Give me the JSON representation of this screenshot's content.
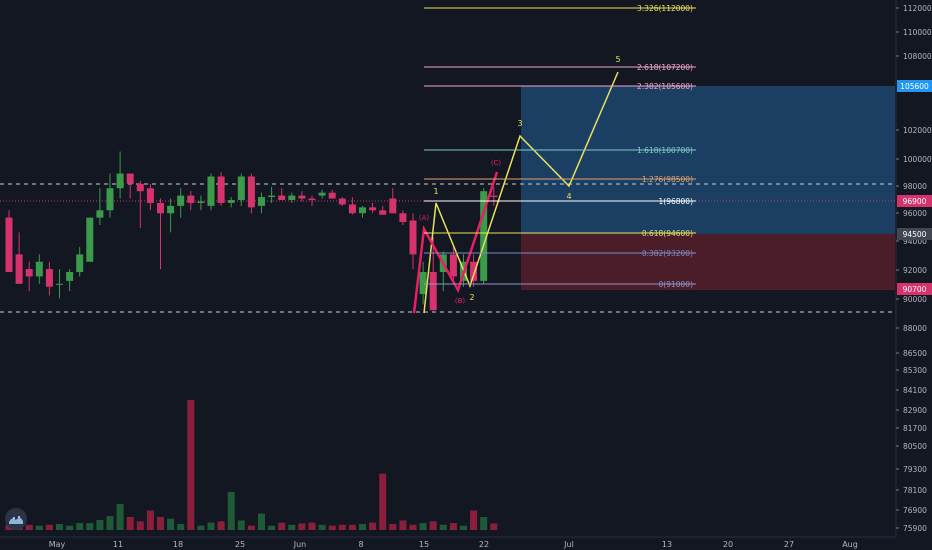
{
  "chart_data": {
    "type": "candlestick",
    "title": "",
    "grid": false,
    "colors": {
      "background": "#131722",
      "up": "#3b9b4a",
      "down": "#d6336c",
      "wave_main": "#e8e05a",
      "wave_abc": "#e91e63",
      "target_zone": "#1e4d7a",
      "stop_zone": "#5a1f2c"
    },
    "x_ticks": [
      "May",
      "11",
      "18",
      "25",
      "Jun",
      "8",
      "15",
      "22",
      "Jul",
      "13",
      "20",
      "27",
      "Aug"
    ],
    "y_ticks": [
      "112000",
      "110000",
      "108000",
      "102000",
      "100000",
      "98000",
      "96000",
      "94000",
      "92000",
      "90000",
      "88000",
      "86500",
      "85300",
      "84100",
      "82900",
      "81700",
      "80500",
      "79300",
      "78100",
      "76900",
      "75900"
    ],
    "price_badges": [
      {
        "label": "105600",
        "color": "#2196f3"
      },
      {
        "label": "96900",
        "color": "#d6336c"
      },
      {
        "label": "94500",
        "color": "#434651"
      },
      {
        "label": "90700",
        "color": "#d6336c"
      }
    ],
    "fib_levels": [
      {
        "label": "3.326(112000)",
        "color": "#e8e05a"
      },
      {
        "label": "2.618(107200)",
        "color": "#f3a6c9"
      },
      {
        "label": "2.382(105600)",
        "color": "#f3a6c9"
      },
      {
        "label": "1.618(100700)",
        "color": "#80cbc4"
      },
      {
        "label": "1.276(98500)",
        "color": "#e0a070"
      },
      {
        "label": "1(96800)",
        "color": "#ffffff"
      },
      {
        "label": "0.618(94600)",
        "color": "#e8e05a"
      },
      {
        "label": "0.382(93200)",
        "color": "#7e8ac9"
      },
      {
        "label": "0(91000)",
        "color": "#8c94c9"
      }
    ],
    "wave_labels": [
      "1",
      "2",
      "3",
      "4",
      "5"
    ],
    "abc_labels": [
      "(A)",
      "(B)",
      "(C)"
    ],
    "candles": [
      {
        "o": 95500,
        "h": 96000,
        "l": 91800,
        "c": 91800
      },
      {
        "o": 93000,
        "h": 94500,
        "l": 91000,
        "c": 91000
      },
      {
        "o": 92000,
        "h": 92500,
        "l": 90500,
        "c": 91500
      },
      {
        "o": 91500,
        "h": 93000,
        "l": 91000,
        "c": 92500
      },
      {
        "o": 92000,
        "h": 92500,
        "l": 90200,
        "c": 90800
      },
      {
        "o": 91000,
        "h": 92000,
        "l": 90000,
        "c": 91000
      },
      {
        "o": 91200,
        "h": 92000,
        "l": 90500,
        "c": 91800
      },
      {
        "o": 91800,
        "h": 93500,
        "l": 91500,
        "c": 93000
      },
      {
        "o": 92500,
        "h": 95500,
        "l": 92500,
        "c": 95500
      },
      {
        "o": 95500,
        "h": 97500,
        "l": 95000,
        "c": 96000
      },
      {
        "o": 96000,
        "h": 98500,
        "l": 95500,
        "c": 97500
      },
      {
        "o": 97500,
        "h": 100000,
        "l": 96800,
        "c": 98500
      },
      {
        "o": 98500,
        "h": 98500,
        "l": 96800,
        "c": 97800
      },
      {
        "o": 97800,
        "h": 98000,
        "l": 94800,
        "c": 97300
      },
      {
        "o": 97500,
        "h": 97800,
        "l": 96000,
        "c": 96500
      },
      {
        "o": 96500,
        "h": 96800,
        "l": 92000,
        "c": 95800
      },
      {
        "o": 95800,
        "h": 96800,
        "l": 94500,
        "c": 96300
      },
      {
        "o": 96300,
        "h": 97500,
        "l": 95500,
        "c": 97000
      },
      {
        "o": 97000,
        "h": 97300,
        "l": 96000,
        "c": 96500
      },
      {
        "o": 96500,
        "h": 97000,
        "l": 96000,
        "c": 96600
      },
      {
        "o": 96300,
        "h": 98500,
        "l": 96000,
        "c": 98300
      },
      {
        "o": 98300,
        "h": 98600,
        "l": 96300,
        "c": 96500
      },
      {
        "o": 96500,
        "h": 96900,
        "l": 96200,
        "c": 96700
      },
      {
        "o": 96700,
        "h": 98500,
        "l": 96300,
        "c": 98300
      },
      {
        "o": 98300,
        "h": 98500,
        "l": 95800,
        "c": 96200
      },
      {
        "o": 96300,
        "h": 97200,
        "l": 95800,
        "c": 96900
      },
      {
        "o": 96900,
        "h": 97600,
        "l": 96500,
        "c": 97000
      },
      {
        "o": 97000,
        "h": 97500,
        "l": 96700,
        "c": 96700
      },
      {
        "o": 96700,
        "h": 97200,
        "l": 96500,
        "c": 97000
      },
      {
        "o": 97000,
        "h": 97300,
        "l": 96600,
        "c": 96800
      },
      {
        "o": 96800,
        "h": 97000,
        "l": 96300,
        "c": 96700
      },
      {
        "o": 97000,
        "h": 97400,
        "l": 96800,
        "c": 97200
      },
      {
        "o": 97200,
        "h": 97400,
        "l": 96900,
        "c": 96800
      },
      {
        "o": 96800,
        "h": 96900,
        "l": 96300,
        "c": 96400
      },
      {
        "o": 96400,
        "h": 96900,
        "l": 95700,
        "c": 95800
      },
      {
        "o": 95800,
        "h": 96300,
        "l": 95500,
        "c": 96200
      },
      {
        "o": 96200,
        "h": 96500,
        "l": 95800,
        "c": 96000
      },
      {
        "o": 96000,
        "h": 96300,
        "l": 95700,
        "c": 95700
      },
      {
        "o": 96800,
        "h": 97500,
        "l": 95800,
        "c": 95800
      },
      {
        "o": 95800,
        "h": 96000,
        "l": 95000,
        "c": 95200
      },
      {
        "o": 95300,
        "h": 95800,
        "l": 92000,
        "c": 93000
      },
      {
        "o": 90300,
        "h": 92500,
        "l": 89600,
        "c": 91800
      },
      {
        "o": 91800,
        "h": 94200,
        "l": 89200,
        "c": 89200
      },
      {
        "o": 91800,
        "h": 93200,
        "l": 90500,
        "c": 93000
      },
      {
        "o": 93000,
        "h": 93500,
        "l": 91300,
        "c": 91500
      },
      {
        "o": 91200,
        "h": 93000,
        "l": 90800,
        "c": 92500
      },
      {
        "o": 92500,
        "h": 93000,
        "l": 90800,
        "c": 91200
      },
      {
        "o": 91200,
        "h": 97500,
        "l": 91000,
        "c": 97300
      },
      {
        "o": 97000,
        "h": 97600,
        "l": 96300,
        "c": 96900
      }
    ],
    "volumes": [
      1.2,
      1.0,
      1.2,
      1.0,
      1.2,
      1.4,
      1.0,
      1.6,
      1.6,
      2.3,
      3.2,
      6.0,
      3.0,
      2.0,
      4.5,
      3.0,
      2.6,
      1.4,
      30.0,
      1.0,
      1.7,
      2.0,
      8.8,
      2.2,
      1.0,
      3.8,
      1.0,
      1.7,
      1.2,
      1.5,
      1.7,
      1.2,
      1.0,
      1.2,
      1.2,
      1.4,
      1.7,
      13.0,
      1.4,
      2.2,
      1.2,
      1.6,
      2.0,
      1.2,
      1.6,
      1.0,
      4.5,
      3.0,
      1.5
    ]
  }
}
